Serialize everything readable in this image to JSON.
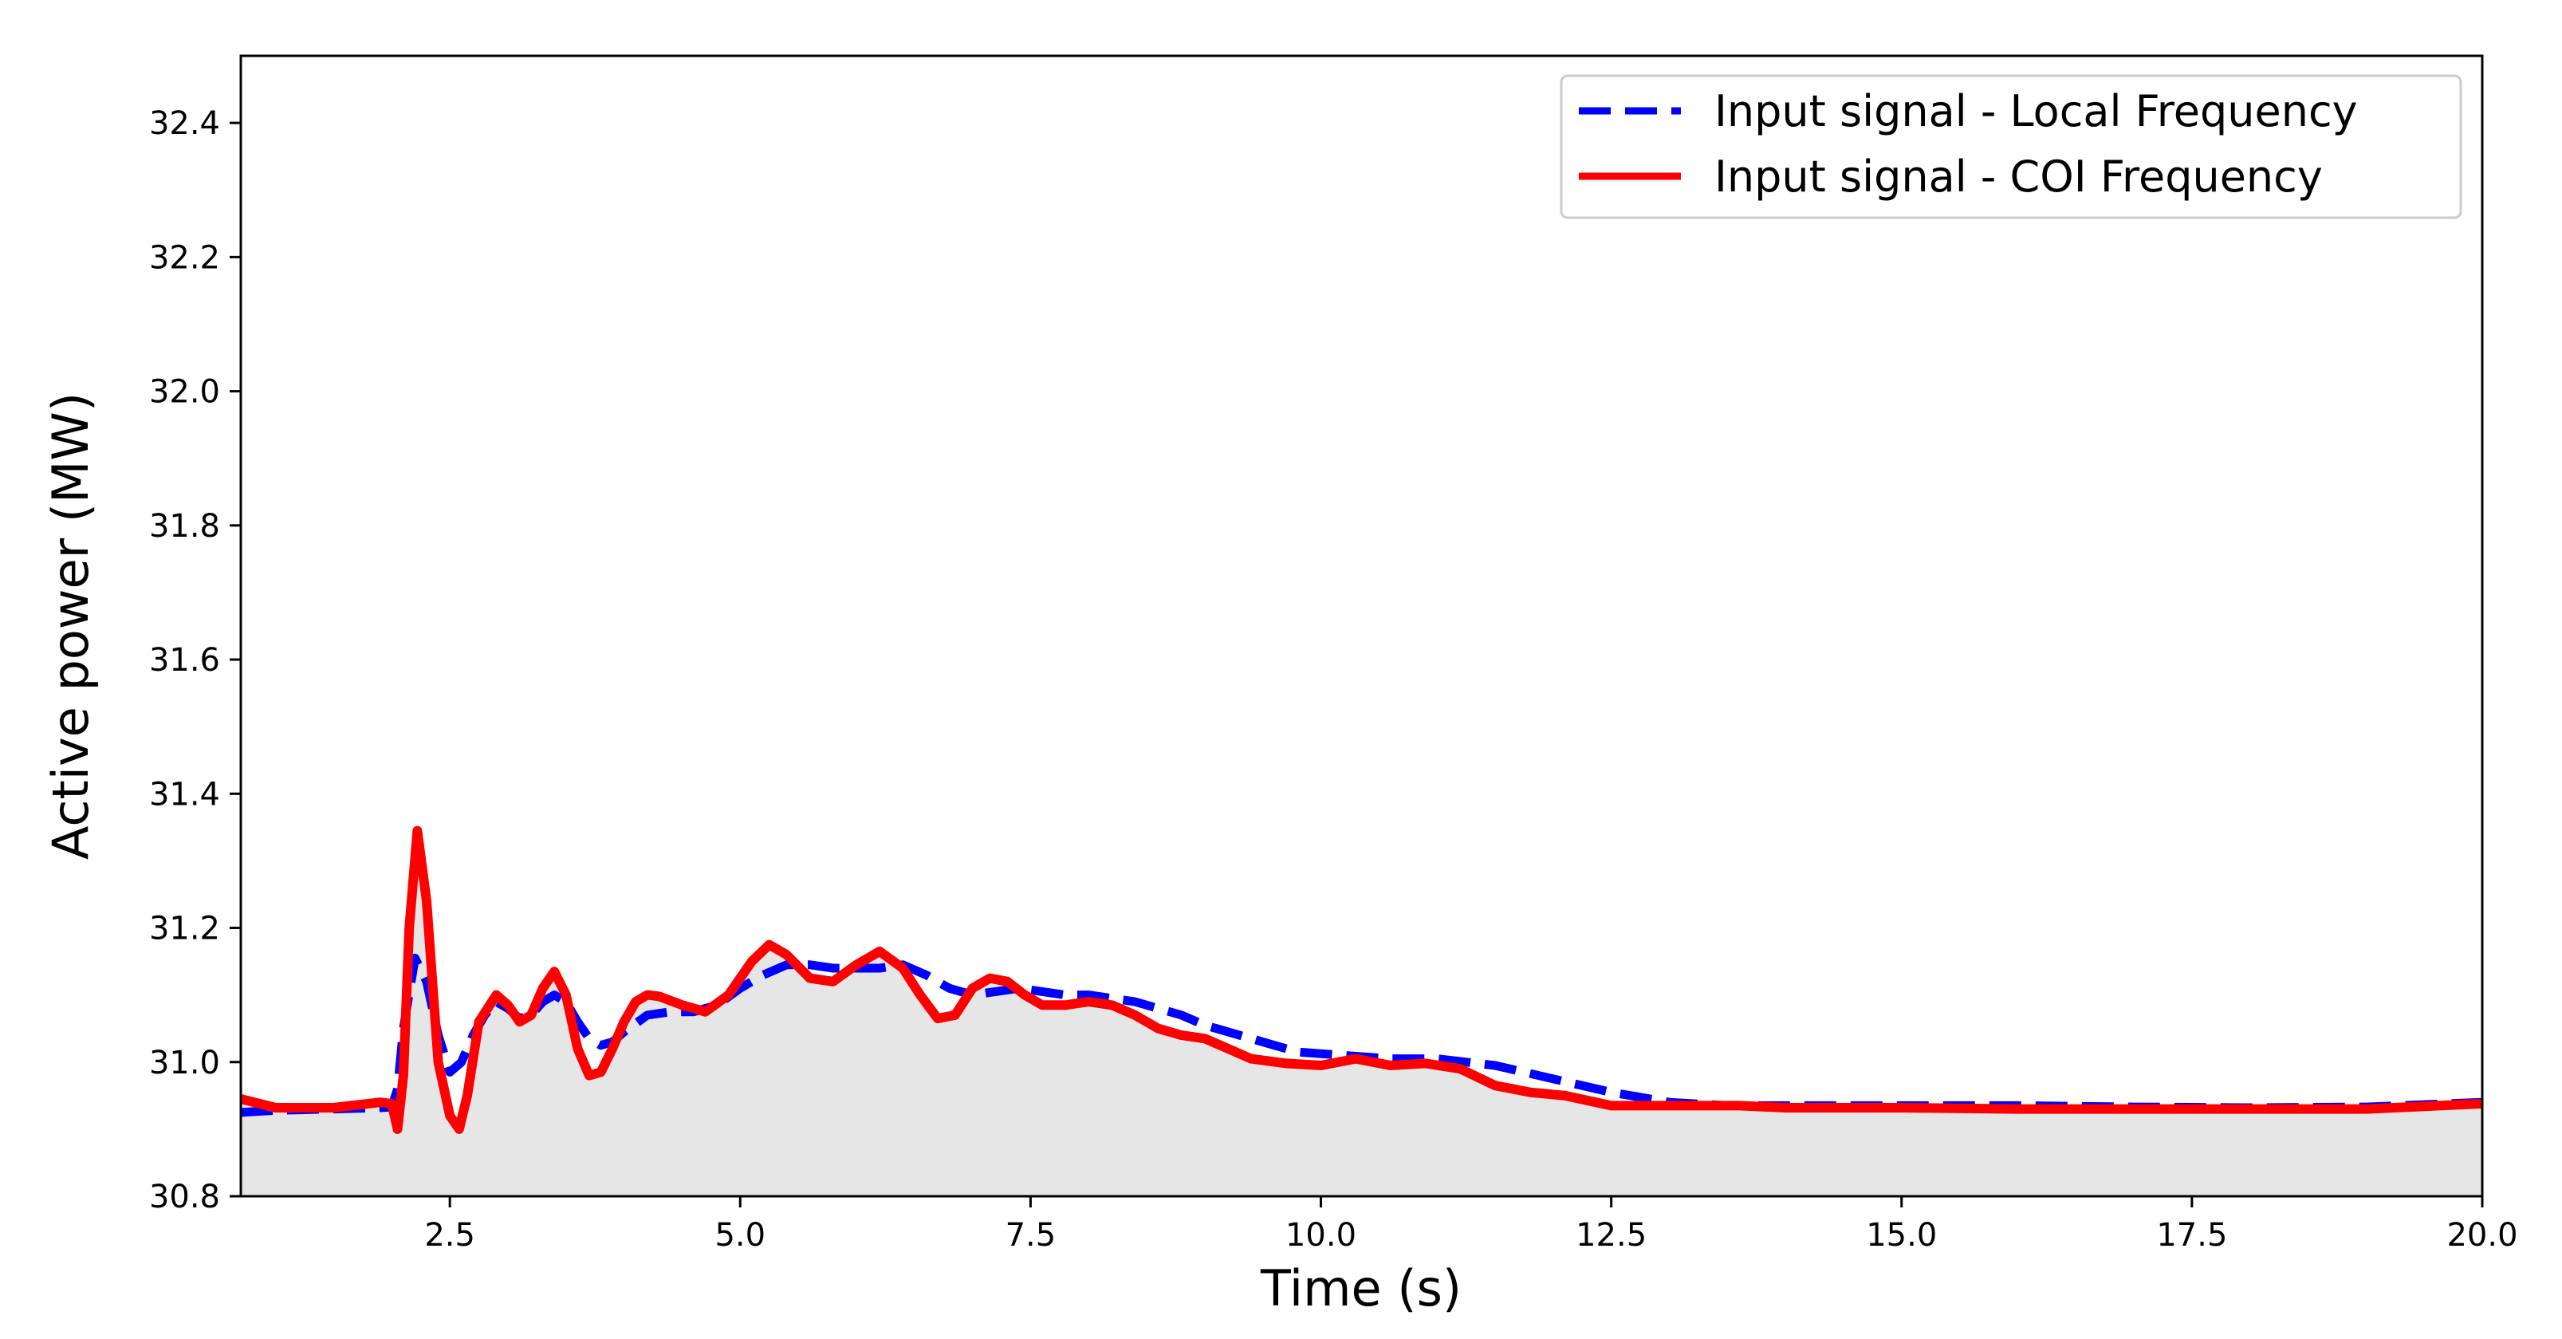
{
  "chart_data": {
    "type": "line",
    "xlabel": "Time (s)",
    "ylabel": "Active power (MW)",
    "xlim": [
      0.7,
      20.0
    ],
    "ylim": [
      30.8,
      32.5
    ],
    "x_ticks": [
      {
        "value": 2.5,
        "label": "2.5"
      },
      {
        "value": 5.0,
        "label": "5.0"
      },
      {
        "value": 7.5,
        "label": "7.5"
      },
      {
        "value": 10.0,
        "label": "10.0"
      },
      {
        "value": 12.5,
        "label": "12.5"
      },
      {
        "value": 15.0,
        "label": "15.0"
      },
      {
        "value": 17.5,
        "label": "17.5"
      },
      {
        "value": 20.0,
        "label": "20.0"
      }
    ],
    "y_ticks": [
      {
        "value": 30.8,
        "label": "30.8"
      },
      {
        "value": 31.0,
        "label": "31.0"
      },
      {
        "value": 31.2,
        "label": "31.2"
      },
      {
        "value": 31.4,
        "label": "31.4"
      },
      {
        "value": 31.6,
        "label": "31.6"
      },
      {
        "value": 31.8,
        "label": "31.8"
      },
      {
        "value": 32.0,
        "label": "32.0"
      },
      {
        "value": 32.2,
        "label": "32.2"
      },
      {
        "value": 32.4,
        "label": "32.4"
      }
    ],
    "grid": false,
    "legend_position": "top-right",
    "fill_below_series": "Input signal - COI Frequency",
    "fill_color": "#e6e6e6",
    "series": [
      {
        "name": "Input signal - Local Frequency",
        "color": "#0000ff",
        "style": "dashed",
        "x": [
          0.7,
          1.0,
          1.5,
          1.9,
          2.0,
          2.05,
          2.1,
          2.2,
          2.3,
          2.4,
          2.5,
          2.6,
          2.7,
          2.8,
          2.9,
          3.0,
          3.1,
          3.2,
          3.3,
          3.4,
          3.5,
          3.6,
          3.7,
          3.8,
          3.9,
          4.0,
          4.2,
          4.4,
          4.6,
          4.8,
          5.0,
          5.2,
          5.4,
          5.6,
          5.8,
          6.0,
          6.2,
          6.4,
          6.6,
          6.8,
          7.0,
          7.2,
          7.4,
          7.6,
          7.8,
          8.0,
          8.2,
          8.4,
          8.6,
          8.8,
          9.0,
          9.4,
          9.8,
          10.2,
          10.6,
          11.0,
          11.5,
          12.0,
          12.5,
          13.0,
          13.5,
          14.0,
          15.0,
          16.0,
          17.0,
          18.0,
          19.0,
          20.0
        ],
        "y": [
          30.925,
          30.928,
          30.93,
          30.932,
          30.933,
          30.96,
          31.05,
          31.155,
          31.12,
          31.04,
          30.985,
          31.0,
          31.04,
          31.07,
          31.09,
          31.08,
          31.065,
          31.07,
          31.09,
          31.1,
          31.09,
          31.06,
          31.035,
          31.025,
          31.03,
          31.045,
          31.07,
          31.075,
          31.075,
          31.085,
          31.11,
          31.13,
          31.145,
          31.145,
          31.14,
          31.14,
          31.14,
          31.145,
          31.13,
          31.11,
          31.1,
          31.105,
          31.11,
          31.105,
          31.1,
          31.1,
          31.095,
          31.09,
          31.08,
          31.07,
          31.055,
          31.035,
          31.015,
          31.01,
          31.005,
          31.005,
          30.995,
          30.975,
          30.955,
          30.94,
          30.935,
          30.935,
          30.935,
          30.935,
          30.933,
          30.932,
          30.933,
          30.94
        ]
      },
      {
        "name": "Input signal - COI Frequency",
        "color": "#ff0000",
        "style": "solid",
        "x": [
          0.7,
          1.0,
          1.5,
          1.9,
          2.0,
          2.05,
          2.1,
          2.15,
          2.22,
          2.3,
          2.4,
          2.5,
          2.58,
          2.65,
          2.75,
          2.9,
          3.0,
          3.1,
          3.2,
          3.3,
          3.4,
          3.5,
          3.6,
          3.7,
          3.8,
          3.9,
          4.0,
          4.1,
          4.2,
          4.3,
          4.5,
          4.7,
          4.9,
          5.1,
          5.25,
          5.4,
          5.6,
          5.8,
          6.0,
          6.2,
          6.4,
          6.55,
          6.7,
          6.85,
          7.0,
          7.15,
          7.3,
          7.45,
          7.6,
          7.8,
          8.0,
          8.2,
          8.4,
          8.6,
          8.8,
          9.0,
          9.2,
          9.4,
          9.7,
          10.0,
          10.3,
          10.6,
          10.9,
          11.2,
          11.5,
          11.8,
          12.1,
          12.5,
          13.0,
          13.3,
          13.6,
          14.0,
          15.0,
          16.0,
          17.0,
          18.0,
          19.0,
          20.0
        ],
        "y": [
          30.945,
          30.932,
          30.932,
          30.94,
          30.938,
          30.9,
          30.98,
          31.2,
          31.345,
          31.24,
          31.0,
          30.92,
          30.9,
          30.95,
          31.06,
          31.1,
          31.085,
          31.06,
          31.07,
          31.11,
          31.135,
          31.1,
          31.02,
          30.98,
          30.985,
          31.02,
          31.06,
          31.09,
          31.1,
          31.098,
          31.085,
          31.075,
          31.1,
          31.15,
          31.175,
          31.16,
          31.125,
          31.12,
          31.145,
          31.165,
          31.14,
          31.1,
          31.065,
          31.07,
          31.11,
          31.125,
          31.12,
          31.1,
          31.085,
          31.085,
          31.09,
          31.085,
          31.07,
          31.05,
          31.04,
          31.035,
          31.02,
          31.005,
          30.998,
          30.995,
          31.005,
          30.995,
          30.998,
          30.99,
          30.965,
          30.955,
          30.95,
          30.935,
          30.935,
          30.935,
          30.935,
          30.932,
          30.932,
          30.93,
          30.93,
          30.93,
          30.93,
          30.938
        ]
      }
    ]
  }
}
